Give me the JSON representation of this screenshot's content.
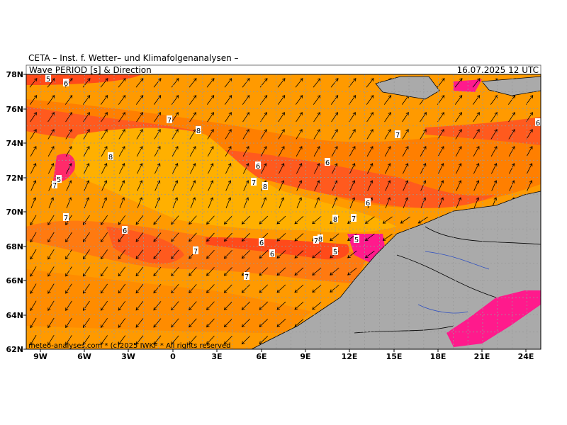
{
  "header": {
    "institute": "CETA – Inst. f. Wetter– und Klimafolgenanalysen –",
    "product": "Wave PERIOD [s] & Direction",
    "valid_time": "16.07.2025 12 UTC"
  },
  "axes": {
    "latitude_labels": [
      "78N",
      "76N",
      "74N",
      "72N",
      "70N",
      "68N",
      "66N",
      "64N",
      "62N"
    ],
    "longitude_labels": [
      "9W",
      "6W",
      "3W",
      "0",
      "3E",
      "6E",
      "9E",
      "12E",
      "15E",
      "18E",
      "21E",
      "24E"
    ]
  },
  "contour_labels": [
    5,
    6,
    7,
    8,
    7,
    6,
    8,
    6,
    6,
    5,
    7,
    7,
    8,
    6,
    7,
    8,
    7,
    6,
    7,
    8,
    5,
    6,
    7,
    6,
    5,
    7
  ],
  "credit": "meteo-analyses.com * (c)2025 IWKF * All rights reserved"
}
